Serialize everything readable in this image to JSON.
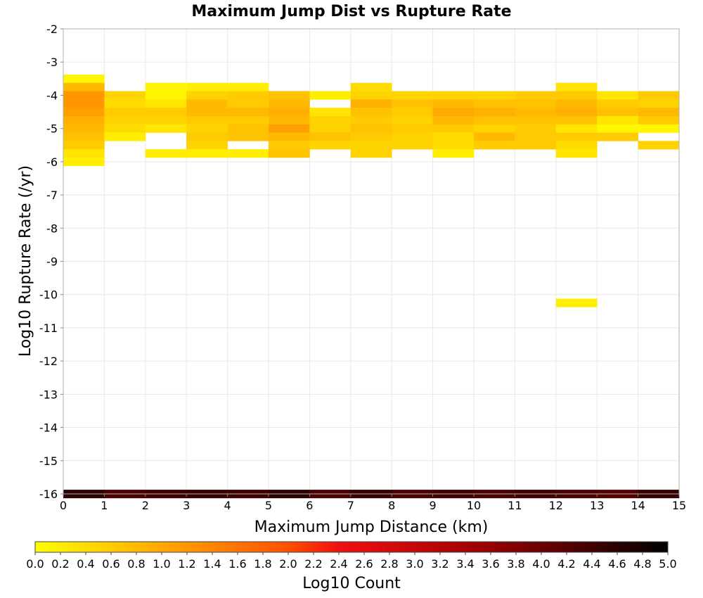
{
  "chart_data": {
    "type": "heatmap",
    "title": "Maximum Jump Dist vs Rupture Rate",
    "xlabel": "Maximum Jump Distance (km)",
    "ylabel": "Log10 Rupture Rate (/yr)",
    "xlim": [
      0,
      15
    ],
    "ylim": [
      -16,
      -2
    ],
    "x_ticks": [
      0,
      1,
      2,
      3,
      4,
      5,
      6,
      7,
      8,
      9,
      10,
      11,
      12,
      13,
      14,
      15
    ],
    "y_ticks": [
      -2,
      -3,
      -4,
      -5,
      -6,
      -7,
      -8,
      -9,
      -10,
      -11,
      -12,
      -13,
      -14,
      -15,
      -16
    ],
    "grid": true,
    "cell_width": 1,
    "cell_height": 0.25,
    "colorbar": {
      "label": "Log10 Count",
      "min": 0.0,
      "max": 5.0,
      "ticks": [
        "0.0",
        "0.2",
        "0.4",
        "0.6",
        "0.8",
        "1.0",
        "1.2",
        "1.4",
        "1.6",
        "1.8",
        "2.0",
        "2.2",
        "2.4",
        "2.6",
        "2.8",
        "3.0",
        "3.2",
        "3.4",
        "3.6",
        "3.8",
        "4.0",
        "4.2",
        "4.4",
        "4.6",
        "4.8",
        "5.0"
      ],
      "scale": "yellow-orange-red-black",
      "placement": "bottom"
    },
    "columns": [
      {
        "x": 0,
        "cells": [
          [
            -3.5,
            0.1
          ],
          [
            -3.75,
            0.8
          ],
          [
            -4.0,
            1.2
          ],
          [
            -4.25,
            1.2
          ],
          [
            -4.5,
            1.1
          ],
          [
            -4.75,
            0.9
          ],
          [
            -5.0,
            0.8
          ],
          [
            -5.25,
            0.7
          ],
          [
            -5.5,
            0.6
          ],
          [
            -5.75,
            0.3
          ],
          [
            -6.0,
            0.2
          ],
          [
            -16.0,
            4.6
          ]
        ]
      },
      {
        "x": 1,
        "cells": [
          [
            -4.0,
            0.5
          ],
          [
            -4.25,
            0.4
          ],
          [
            -4.5,
            0.6
          ],
          [
            -4.75,
            0.5
          ],
          [
            -5.0,
            0.4
          ],
          [
            -5.25,
            0.2
          ],
          [
            -16.0,
            4.3
          ]
        ]
      },
      {
        "x": 2,
        "cells": [
          [
            -3.75,
            0.1
          ],
          [
            -4.0,
            0.1
          ],
          [
            -4.25,
            0.3
          ],
          [
            -4.5,
            0.6
          ],
          [
            -4.75,
            0.5
          ],
          [
            -5.0,
            0.3
          ],
          [
            -5.75,
            0.2
          ],
          [
            -16.0,
            4.4
          ]
        ]
      },
      {
        "x": 3,
        "cells": [
          [
            -3.75,
            0.2
          ],
          [
            -4.0,
            0.5
          ],
          [
            -4.25,
            0.8
          ],
          [
            -4.5,
            0.8
          ],
          [
            -4.75,
            0.6
          ],
          [
            -5.0,
            0.5
          ],
          [
            -5.25,
            0.6
          ],
          [
            -5.5,
            0.5
          ],
          [
            -5.75,
            0.2
          ],
          [
            -16.0,
            4.5
          ]
        ]
      },
      {
        "x": 4,
        "cells": [
          [
            -3.75,
            0.2
          ],
          [
            -4.0,
            0.6
          ],
          [
            -4.25,
            0.6
          ],
          [
            -4.5,
            0.8
          ],
          [
            -4.75,
            0.6
          ],
          [
            -5.0,
            0.7
          ],
          [
            -5.25,
            0.7
          ],
          [
            -5.75,
            0.2
          ],
          [
            -16.0,
            4.4
          ]
        ]
      },
      {
        "x": 5,
        "cells": [
          [
            -4.0,
            0.7
          ],
          [
            -4.25,
            0.8
          ],
          [
            -4.5,
            0.9
          ],
          [
            -4.75,
            0.8
          ],
          [
            -5.0,
            1.1
          ],
          [
            -5.25,
            0.8
          ],
          [
            -5.5,
            0.6
          ],
          [
            -5.75,
            0.7
          ],
          [
            -16.0,
            4.6
          ]
        ]
      },
      {
        "x": 6,
        "cells": [
          [
            -4.0,
            0.2
          ],
          [
            -4.5,
            0.3
          ],
          [
            -4.75,
            0.5
          ],
          [
            -5.0,
            0.5
          ],
          [
            -5.25,
            0.7
          ],
          [
            -5.5,
            0.5
          ],
          [
            -16.0,
            4.3
          ]
        ]
      },
      {
        "x": 7,
        "cells": [
          [
            -3.75,
            0.4
          ],
          [
            -4.0,
            0.5
          ],
          [
            -4.25,
            0.9
          ],
          [
            -4.5,
            0.7
          ],
          [
            -4.75,
            0.6
          ],
          [
            -5.0,
            0.7
          ],
          [
            -5.25,
            0.6
          ],
          [
            -5.5,
            0.5
          ],
          [
            -5.75,
            0.5
          ],
          [
            -16.0,
            4.5
          ]
        ]
      },
      {
        "x": 8,
        "cells": [
          [
            -4.0,
            0.5
          ],
          [
            -4.25,
            0.7
          ],
          [
            -4.5,
            0.6
          ],
          [
            -4.75,
            0.5
          ],
          [
            -5.0,
            0.6
          ],
          [
            -5.25,
            0.5
          ],
          [
            -5.5,
            0.5
          ],
          [
            -16.0,
            4.3
          ]
        ]
      },
      {
        "x": 9,
        "cells": [
          [
            -4.0,
            0.5
          ],
          [
            -4.25,
            0.8
          ],
          [
            -4.5,
            1.0
          ],
          [
            -4.75,
            0.8
          ],
          [
            -5.0,
            0.6
          ],
          [
            -5.25,
            0.4
          ],
          [
            -5.5,
            0.4
          ],
          [
            -5.75,
            0.2
          ],
          [
            -16.0,
            4.4
          ]
        ]
      },
      {
        "x": 10,
        "cells": [
          [
            -4.0,
            0.5
          ],
          [
            -4.25,
            0.7
          ],
          [
            -4.5,
            0.9
          ],
          [
            -4.75,
            0.7
          ],
          [
            -5.0,
            0.5
          ],
          [
            -5.25,
            0.8
          ],
          [
            -5.5,
            0.6
          ],
          [
            -16.0,
            4.3
          ]
        ]
      },
      {
        "x": 11,
        "cells": [
          [
            -4.0,
            0.6
          ],
          [
            -4.25,
            0.7
          ],
          [
            -4.5,
            0.8
          ],
          [
            -4.75,
            0.7
          ],
          [
            -5.0,
            0.6
          ],
          [
            -5.25,
            0.6
          ],
          [
            -5.5,
            0.6
          ],
          [
            -16.0,
            4.4
          ]
        ]
      },
      {
        "x": 12,
        "cells": [
          [
            -3.75,
            0.3
          ],
          [
            -4.0,
            0.6
          ],
          [
            -4.25,
            0.8
          ],
          [
            -4.5,
            0.9
          ],
          [
            -4.75,
            0.7
          ],
          [
            -5.0,
            0.3
          ],
          [
            -5.25,
            0.6
          ],
          [
            -5.5,
            0.4
          ],
          [
            -5.75,
            0.3
          ],
          [
            -10.25,
            0.2
          ],
          [
            -16.0,
            4.3
          ]
        ]
      },
      {
        "x": 13,
        "cells": [
          [
            -4.0,
            0.3
          ],
          [
            -4.25,
            0.6
          ],
          [
            -4.5,
            0.7
          ],
          [
            -4.75,
            0.3
          ],
          [
            -5.0,
            0.1
          ],
          [
            -5.25,
            0.6
          ],
          [
            -16.0,
            4.2
          ]
        ]
      },
      {
        "x": 14,
        "cells": [
          [
            -4.0,
            0.6
          ],
          [
            -4.25,
            0.5
          ],
          [
            -4.5,
            0.8
          ],
          [
            -4.75,
            0.6
          ],
          [
            -5.0,
            0.1
          ],
          [
            -5.5,
            0.5
          ],
          [
            -16.0,
            4.5
          ]
        ]
      }
    ]
  }
}
